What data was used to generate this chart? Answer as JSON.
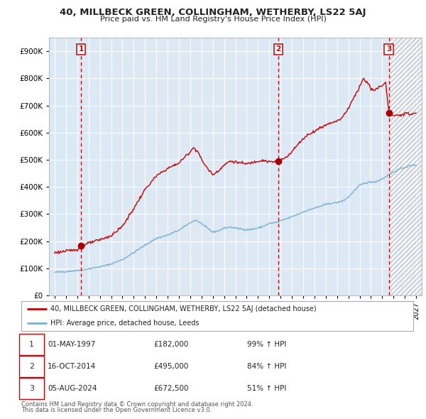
{
  "title": "40, MILLBECK GREEN, COLLINGHAM, WETHERBY, LS22 5AJ",
  "subtitle": "Price paid vs. HM Land Registry's House Price Index (HPI)",
  "background_color": "#dce9f5",
  "grid_color": "#ffffff",
  "red_line_color": "#cc0000",
  "blue_line_color": "#7ab0d4",
  "sale1_date": 1997.33,
  "sale1_price": 182000,
  "sale2_date": 2014.79,
  "sale2_price": 495000,
  "sale3_date": 2024.59,
  "sale3_price": 672500,
  "xmin": 1994.5,
  "xmax": 2027.5,
  "ymin": 0,
  "ymax": 950000,
  "yticks": [
    0,
    100000,
    200000,
    300000,
    400000,
    500000,
    600000,
    700000,
    800000,
    900000
  ],
  "ytick_labels": [
    "£0",
    "£100K",
    "£200K",
    "£300K",
    "£400K",
    "£500K",
    "£600K",
    "£700K",
    "£800K",
    "£900K"
  ],
  "xticks": [
    1995,
    1996,
    1997,
    1998,
    1999,
    2000,
    2001,
    2002,
    2003,
    2004,
    2005,
    2006,
    2007,
    2008,
    2009,
    2010,
    2011,
    2012,
    2013,
    2014,
    2015,
    2016,
    2017,
    2018,
    2019,
    2020,
    2021,
    2022,
    2023,
    2024,
    2025,
    2026,
    2027
  ],
  "legend_line1": "40, MILLBECK GREEN, COLLINGHAM, WETHERBY, LS22 5AJ (detached house)",
  "legend_line2": "HPI: Average price, detached house, Leeds",
  "table_rows": [
    {
      "num": "1",
      "date": "01-MAY-1997",
      "price": "£182,000",
      "hpi": "99% ↑ HPI"
    },
    {
      "num": "2",
      "date": "16-OCT-2014",
      "price": "£495,000",
      "hpi": "84% ↑ HPI"
    },
    {
      "num": "3",
      "date": "05-AUG-2024",
      "price": "£672,500",
      "hpi": "51% ↑ HPI"
    }
  ],
  "footnote1": "Contains HM Land Registry data © Crown copyright and database right 2024.",
  "footnote2": "This data is licensed under the Open Government Licence v3.0."
}
